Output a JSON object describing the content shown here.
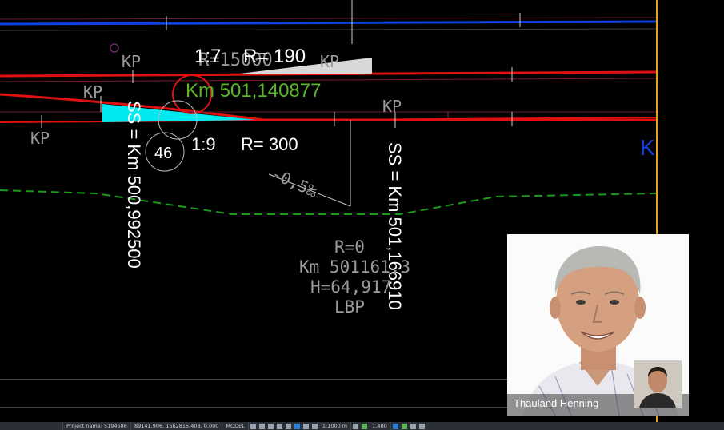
{
  "drawing": {
    "labels": {
      "ratio_top": "1:7",
      "radius_top": "R= 190",
      "ghost_scale": "R=15000",
      "km_label": "Km 501,140877",
      "ratio_bottom": "1:9",
      "radius_bottom": "R= 300",
      "circle_number": "46",
      "slope": "-0,5‰",
      "ss_left": "SS = Km 500,992500",
      "ss_right": "SS = Km 501,166910",
      "blue_k": "K"
    },
    "kp_markers": [
      "KP",
      "KP",
      "KP",
      "KP",
      "KP"
    ],
    "info_block": {
      "line1": "R=0",
      "line2": "Km 501161,3",
      "line3": "H=64,917",
      "line4": "LBP"
    },
    "colors": {
      "track_red": "#e01010",
      "track_blue": "#1040e0",
      "wedge_cyan": "#00e8f0",
      "km_green": "#5ab52a",
      "dash_green": "#1a9a1a",
      "edge_orange": "#e8a020"
    }
  },
  "statusbar": {
    "project": "Project name: 5194586",
    "coords": "89141,906, 1562815,408, 0,000",
    "mode": "MODEL",
    "scale": "1:1000 m",
    "zoom": "1,400"
  },
  "webcam": {
    "presenter_name": "Thauland Henning"
  }
}
